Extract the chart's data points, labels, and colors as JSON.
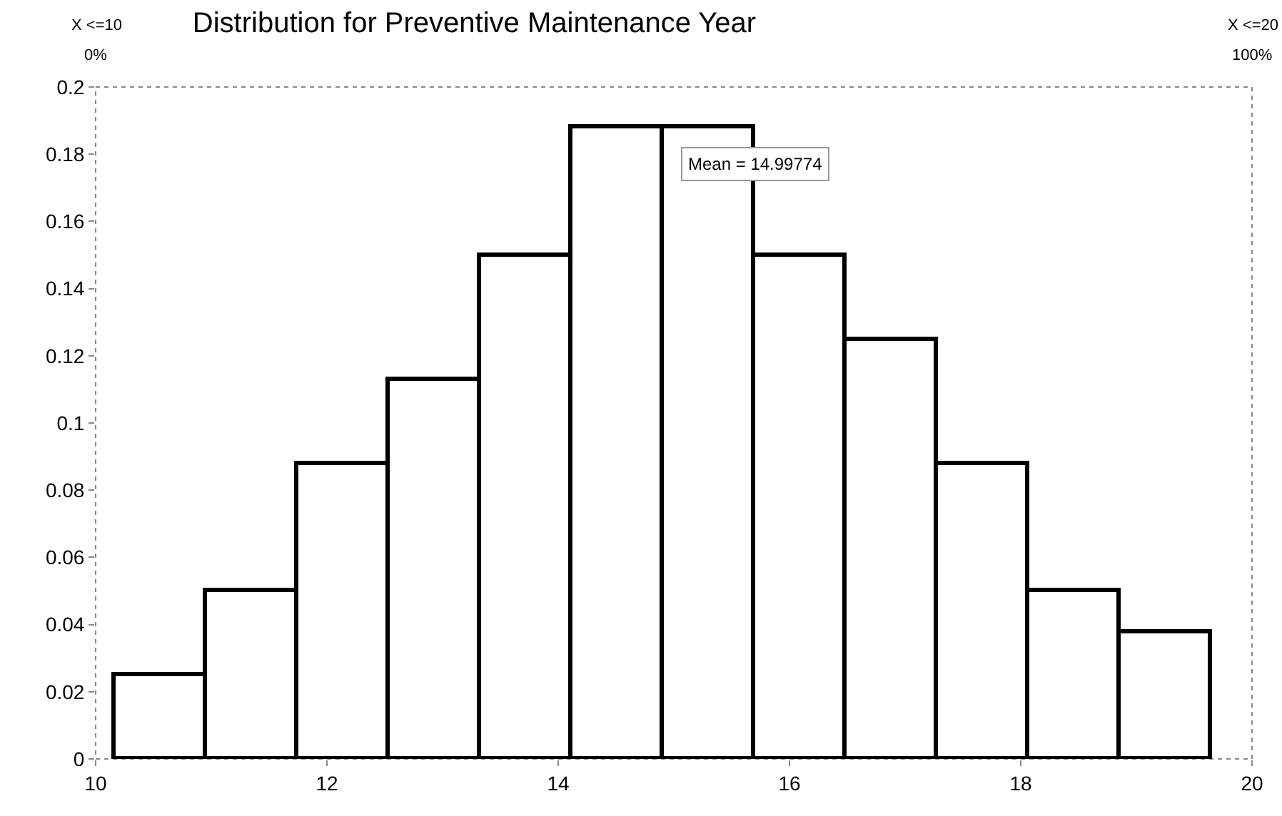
{
  "chart_data": {
    "type": "histogram",
    "title": "Distribution for Preventive Maintenance Year",
    "bins": [
      10.16,
      10.95,
      11.74,
      12.53,
      13.32,
      14.11,
      14.9,
      15.69,
      16.48,
      17.27,
      18.06,
      18.85,
      19.64
    ],
    "values": [
      0.025,
      0.05,
      0.088,
      0.113,
      0.15,
      0.188,
      0.188,
      0.15,
      0.125,
      0.088,
      0.05,
      0.038
    ],
    "color": "#ffffff",
    "xlim": [
      10,
      20
    ],
    "xticks": [
      10,
      12,
      14,
      16,
      18,
      20
    ],
    "ylim": [
      0,
      0.2
    ],
    "yticks": [
      0,
      0.02,
      0.04,
      0.06,
      0.08,
      0.1,
      0.12,
      0.14,
      0.16,
      0.18,
      0.2
    ],
    "annotations": [
      "X <=10",
      "0%",
      "X <=20",
      "100%",
      "Mean = 14.99774"
    ],
    "grid": false,
    "legend": false
  }
}
